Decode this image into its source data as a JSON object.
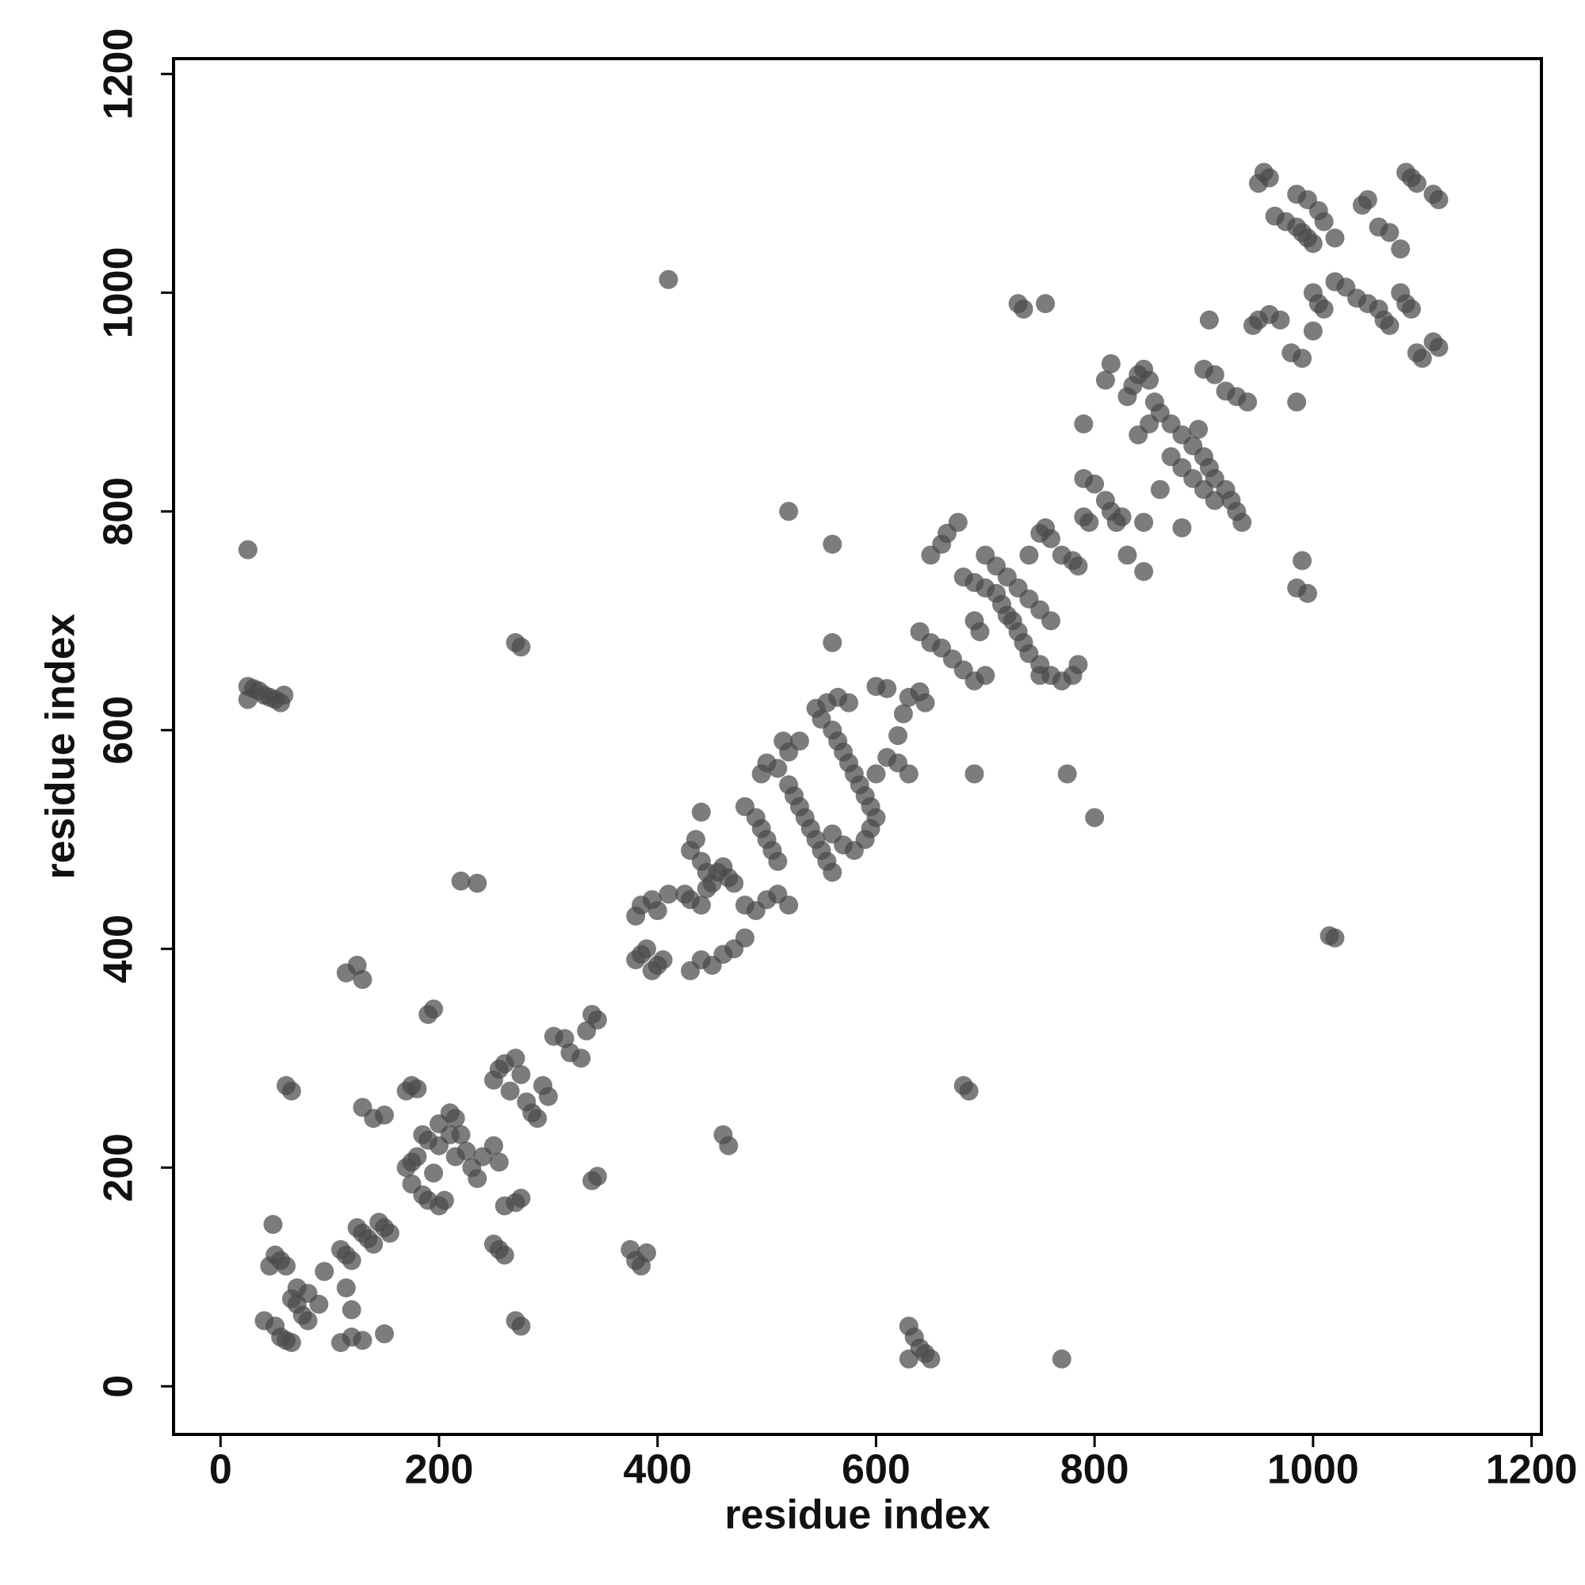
{
  "chart_data": {
    "type": "scatter",
    "xlabel": "residue index",
    "ylabel": "residue index",
    "xlim": [
      -43,
      1209
    ],
    "ylim": [
      -44,
      1214
    ],
    "xticks": [
      0,
      200,
      400,
      600,
      800,
      1000,
      1200
    ],
    "yticks": [
      0,
      200,
      400,
      600,
      800,
      1000,
      1200
    ],
    "color": "#4a4a4a",
    "opacity": 0.72,
    "x": [
      25,
      25,
      30,
      35,
      40,
      45,
      50,
      55,
      58,
      25,
      60,
      65,
      410,
      520,
      560,
      560,
      270,
      275,
      220,
      235,
      115,
      125,
      130,
      190,
      195,
      130,
      140,
      150,
      170,
      175,
      180,
      40,
      50,
      55,
      60,
      65,
      50,
      55,
      60,
      65,
      70,
      75,
      80,
      45,
      70,
      80,
      90,
      95,
      110,
      115,
      120,
      125,
      130,
      135,
      140,
      145,
      150,
      155,
      110,
      120,
      130,
      150,
      120,
      115,
      48,
      170,
      175,
      180,
      175,
      185,
      190,
      195,
      200,
      205,
      185,
      190,
      200,
      210,
      215,
      220,
      225,
      230,
      235,
      240,
      250,
      255,
      200,
      210,
      215,
      250,
      255,
      260,
      265,
      270,
      275,
      280,
      285,
      290,
      295,
      300,
      305,
      315,
      320,
      330,
      335,
      340,
      345,
      260,
      270,
      275,
      250,
      255,
      260,
      270,
      275,
      340,
      345,
      375,
      380,
      385,
      390,
      460,
      465,
      380,
      385,
      390,
      395,
      400,
      405,
      380,
      385,
      395,
      400,
      410,
      425,
      430,
      440,
      445,
      450,
      455,
      460,
      465,
      470,
      430,
      435,
      440,
      445,
      430,
      440,
      450,
      460,
      470,
      480,
      440,
      480,
      490,
      495,
      500,
      505,
      510,
      480,
      490,
      500,
      510,
      495,
      500,
      510,
      520,
      525,
      530,
      535,
      540,
      545,
      550,
      555,
      560,
      515,
      520,
      530,
      545,
      550,
      560,
      565,
      570,
      575,
      580,
      585,
      590,
      595,
      600,
      555,
      565,
      575,
      580,
      590,
      595,
      600,
      610,
      620,
      625,
      630,
      640,
      645,
      600,
      610,
      620,
      630,
      520,
      560,
      570,
      640,
      650,
      660,
      670,
      680,
      690,
      700,
      650,
      660,
      665,
      675,
      680,
      690,
      700,
      710,
      715,
      720,
      725,
      730,
      735,
      740,
      750,
      760,
      770,
      780,
      785,
      690,
      695,
      700,
      710,
      720,
      730,
      740,
      750,
      760,
      740,
      750,
      755,
      760,
      770,
      780,
      785,
      790,
      795,
      730,
      735,
      755,
      680,
      685,
      690,
      775,
      800,
      630,
      635,
      640,
      645,
      650,
      630,
      770,
      750,
      790,
      800,
      810,
      815,
      820,
      825,
      830,
      835,
      840,
      845,
      850,
      855,
      860,
      870,
      880,
      890,
      900,
      905,
      910,
      920,
      925,
      930,
      935,
      920,
      930,
      940,
      900,
      910,
      870,
      880,
      890,
      900,
      910,
      860,
      850,
      840,
      845,
      830,
      845,
      880,
      790,
      810,
      815,
      905,
      895,
      950,
      955,
      960,
      965,
      975,
      985,
      990,
      995,
      1000,
      985,
      995,
      1005,
      1010,
      1020,
      960,
      970,
      980,
      990,
      1000,
      1005,
      1010,
      1020,
      1030,
      1040,
      1050,
      1060,
      1065,
      1070,
      1080,
      1085,
      1090,
      1095,
      1100,
      1110,
      1115,
      1045,
      1050,
      1060,
      1070,
      1080,
      1085,
      1090,
      1095,
      1110,
      1115,
      1000,
      985,
      990,
      995,
      985,
      1015,
      1020,
      945,
      950
    ],
    "values": [
      765,
      640,
      638,
      636,
      632,
      630,
      628,
      625,
      632,
      628,
      275,
      270,
      1012,
      800,
      770,
      680,
      680,
      676,
      462,
      460,
      378,
      385,
      372,
      340,
      345,
      255,
      245,
      248,
      270,
      275,
      272,
      60,
      55,
      45,
      42,
      40,
      120,
      115,
      110,
      80,
      75,
      65,
      60,
      110,
      90,
      85,
      75,
      105,
      125,
      120,
      115,
      145,
      140,
      135,
      130,
      150,
      145,
      140,
      40,
      45,
      42,
      48,
      70,
      90,
      148,
      200,
      205,
      210,
      185,
      175,
      170,
      195,
      165,
      170,
      230,
      225,
      220,
      250,
      245,
      230,
      215,
      200,
      190,
      210,
      220,
      205,
      240,
      230,
      210,
      280,
      290,
      295,
      270,
      300,
      285,
      260,
      250,
      245,
      275,
      265,
      320,
      318,
      305,
      300,
      325,
      340,
      335,
      165,
      168,
      172,
      130,
      125,
      120,
      60,
      55,
      188,
      192,
      125,
      115,
      110,
      122,
      230,
      220,
      390,
      395,
      400,
      380,
      385,
      390,
      430,
      440,
      445,
      435,
      450,
      450,
      445,
      440,
      455,
      460,
      470,
      475,
      465,
      460,
      490,
      500,
      480,
      470,
      380,
      390,
      385,
      395,
      400,
      410,
      525,
      530,
      520,
      510,
      500,
      490,
      480,
      440,
      435,
      445,
      450,
      560,
      570,
      565,
      550,
      540,
      530,
      520,
      510,
      500,
      490,
      480,
      470,
      590,
      580,
      590,
      620,
      610,
      600,
      590,
      580,
      570,
      560,
      550,
      540,
      530,
      520,
      625,
      630,
      625,
      490,
      500,
      510,
      560,
      575,
      595,
      615,
      630,
      635,
      625,
      640,
      638,
      570,
      560,
      440,
      505,
      495,
      690,
      680,
      675,
      665,
      655,
      645,
      650,
      760,
      770,
      780,
      790,
      740,
      735,
      730,
      725,
      715,
      705,
      700,
      690,
      680,
      670,
      660,
      650,
      645,
      650,
      660,
      700,
      690,
      760,
      750,
      740,
      730,
      720,
      710,
      700,
      760,
      780,
      785,
      775,
      760,
      755,
      750,
      795,
      790,
      990,
      985,
      990,
      275,
      270,
      560,
      560,
      520,
      55,
      45,
      35,
      30,
      25,
      25,
      25,
      650,
      830,
      825,
      810,
      800,
      790,
      795,
      905,
      915,
      925,
      930,
      920,
      900,
      890,
      880,
      870,
      860,
      850,
      840,
      830,
      820,
      810,
      800,
      790,
      910,
      905,
      900,
      930,
      925,
      850,
      840,
      830,
      820,
      810,
      820,
      880,
      870,
      790,
      760,
      745,
      785,
      880,
      920,
      935,
      975,
      875,
      1100,
      1110,
      1105,
      1070,
      1065,
      1060,
      1055,
      1050,
      1045,
      1090,
      1085,
      1075,
      1065,
      1050,
      980,
      975,
      945,
      940,
      1000,
      990,
      985,
      1010,
      1005,
      995,
      990,
      985,
      975,
      970,
      1000,
      990,
      985,
      945,
      940,
      955,
      950,
      1080,
      1085,
      1060,
      1055,
      1040,
      1110,
      1105,
      1100,
      1090,
      1085,
      965,
      900,
      755,
      725,
      730,
      412,
      410,
      970,
      975
    ]
  }
}
